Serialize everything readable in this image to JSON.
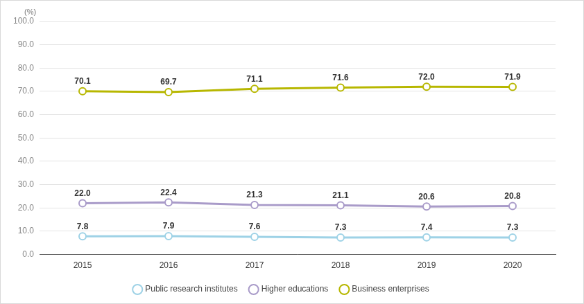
{
  "chart_data": {
    "type": "line",
    "y_label": "(%)",
    "categories": [
      "2015",
      "2016",
      "2017",
      "2018",
      "2019",
      "2020"
    ],
    "series": [
      {
        "name": "Public research institutes",
        "color": "#9ed2e6",
        "marker": "circle",
        "values": [
          7.8,
          7.9,
          7.6,
          7.3,
          7.4,
          7.3
        ],
        "value_labels": [
          "7.8",
          "7.9",
          "7.6",
          "7.3",
          "7.4",
          "7.3"
        ]
      },
      {
        "name": "Higher educations",
        "color": "#a99bc9",
        "marker": "circle",
        "values": [
          22.0,
          22.4,
          21.3,
          21.1,
          20.6,
          20.8
        ],
        "value_labels": [
          "22.0",
          "22.4",
          "21.3",
          "21.1",
          "20.6",
          "20.8"
        ]
      },
      {
        "name": "Business enterprises",
        "color": "#b7b700",
        "marker": "circle",
        "values": [
          70.1,
          69.7,
          71.1,
          71.6,
          72.0,
          71.9
        ],
        "value_labels": [
          "70.1",
          "69.7",
          "71.1",
          "71.6",
          "72.0",
          "71.9"
        ]
      }
    ],
    "ylim": [
      0,
      100
    ],
    "yticks": [
      {
        "value": 0,
        "label": "0.0"
      },
      {
        "value": 10,
        "label": "10.0"
      },
      {
        "value": 20,
        "label": "20.0"
      },
      {
        "value": 30,
        "label": "30.0"
      },
      {
        "value": 40,
        "label": "40.0"
      },
      {
        "value": 50,
        "label": "50.0"
      },
      {
        "value": 60,
        "label": "60.0"
      },
      {
        "value": 70,
        "label": "70.0"
      },
      {
        "value": 80,
        "label": "80.0"
      },
      {
        "value": 90,
        "label": "90.0"
      },
      {
        "value": 100,
        "label": "100.0"
      }
    ],
    "grid": true,
    "legend": "bottom",
    "data_labels": true
  }
}
